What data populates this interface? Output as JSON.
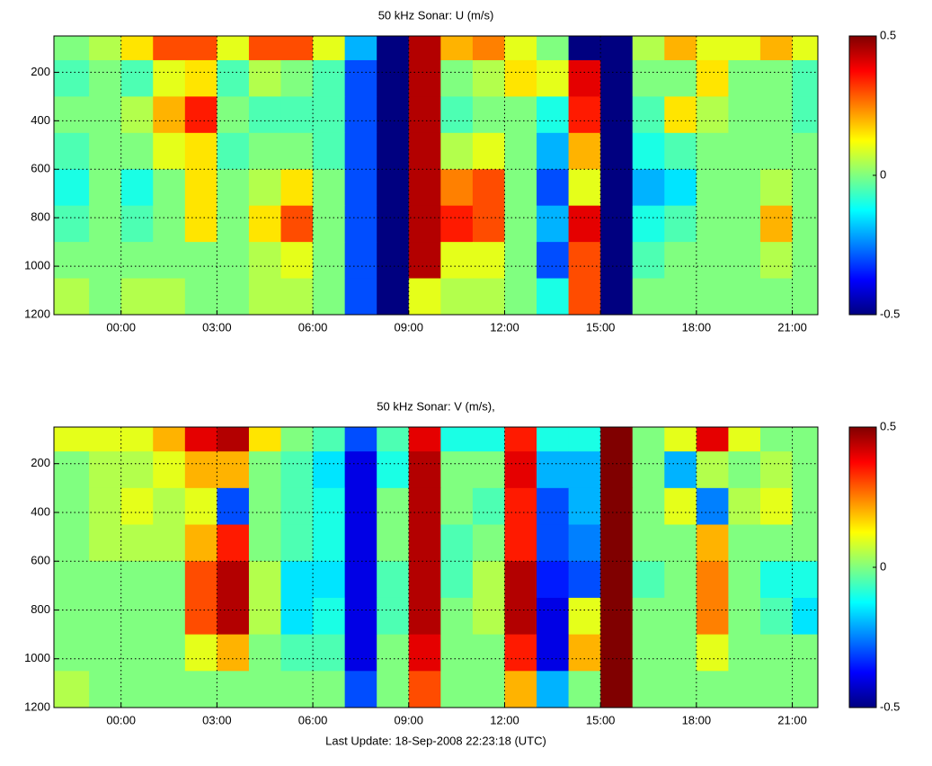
{
  "chart_data": [
    {
      "type": "heatmap",
      "title": "50 kHz Sonar: U (m/s)",
      "x": [
        -2.1,
        -1,
        0,
        1,
        2,
        3,
        4,
        5,
        6,
        7,
        8,
        9,
        10,
        11,
        12,
        13,
        14,
        15,
        16,
        17,
        18,
        19,
        20,
        21,
        21.8
      ],
      "y": [
        50,
        150,
        300,
        450,
        600,
        750,
        900,
        1050,
        1200
      ],
      "z": [
        [
          0,
          0.05,
          0.15,
          0.3,
          0.3,
          0.1,
          0.3,
          0.3,
          0.1,
          -0.2,
          -0.5,
          0.45,
          0.2,
          0.25,
          0.1,
          0,
          -0.5,
          -0.5,
          0.05,
          0.2,
          0.1,
          0.1,
          0.2,
          0.1
        ],
        [
          -0.05,
          0,
          -0.05,
          0.1,
          0.15,
          -0.05,
          0.05,
          0,
          -0.05,
          -0.3,
          -0.5,
          0.45,
          0,
          0.05,
          0.15,
          0.1,
          0.4,
          -0.5,
          0,
          0,
          0.15,
          0,
          0,
          -0.05
        ],
        [
          0,
          0,
          0.05,
          0.2,
          0.35,
          0,
          -0.05,
          -0.05,
          -0.05,
          -0.3,
          -0.5,
          0.45,
          -0.05,
          0,
          0,
          -0.1,
          0.35,
          -0.5,
          -0.05,
          0.15,
          0.05,
          0,
          0,
          -0.05
        ],
        [
          -0.05,
          0,
          0,
          0.1,
          0.15,
          -0.05,
          0,
          0,
          -0.05,
          -0.3,
          -0.5,
          0.45,
          0.05,
          0.1,
          0,
          -0.2,
          0.2,
          -0.5,
          -0.1,
          -0.05,
          0,
          0,
          0,
          0
        ],
        [
          -0.1,
          0,
          -0.1,
          0,
          0.15,
          0,
          0.05,
          0.15,
          0,
          -0.3,
          -0.5,
          0.45,
          0.25,
          0.3,
          0,
          -0.3,
          0.1,
          -0.5,
          -0.2,
          -0.15,
          0,
          0,
          0.05,
          0
        ],
        [
          -0.05,
          0,
          -0.05,
          0,
          0.15,
          0,
          0.15,
          0.3,
          0,
          -0.3,
          -0.5,
          0.45,
          0.35,
          0.3,
          0,
          -0.2,
          0.4,
          -0.5,
          -0.1,
          -0.05,
          0,
          0,
          0.2,
          0
        ],
        [
          0,
          0,
          0,
          0,
          0,
          0,
          0.05,
          0.1,
          0,
          -0.3,
          -0.5,
          0.45,
          0.1,
          0.1,
          0,
          -0.3,
          0.3,
          -0.5,
          -0.05,
          0,
          0,
          0,
          0.05,
          0
        ],
        [
          0.05,
          0,
          0.05,
          0.05,
          0,
          0,
          0.05,
          0.05,
          0,
          -0.3,
          -0.5,
          0.1,
          0.05,
          0.05,
          0,
          -0.1,
          0.3,
          -0.5,
          0,
          0,
          0,
          0,
          0,
          0
        ]
      ],
      "xlim": [
        -2.1,
        21.8
      ],
      "ylim": [
        1200,
        50
      ],
      "xticks": [
        {
          "value": 0,
          "label": "00:00"
        },
        {
          "value": 3,
          "label": "03:00"
        },
        {
          "value": 6,
          "label": "06:00"
        },
        {
          "value": 9,
          "label": "09:00"
        },
        {
          "value": 12,
          "label": "12:00"
        },
        {
          "value": 15,
          "label": "15:00"
        },
        {
          "value": 18,
          "label": "18:00"
        },
        {
          "value": 21,
          "label": "21:00"
        }
      ],
      "yticks": [
        200,
        400,
        600,
        800,
        1000,
        1200
      ],
      "clim": [
        -0.5,
        0.5
      ],
      "cticks": [
        -0.5,
        0,
        0.5
      ],
      "colormap": "jet",
      "grid": true
    },
    {
      "type": "heatmap",
      "title": "50 kHz Sonar: V (m/s),",
      "x": [
        -2.1,
        -1,
        0,
        1,
        2,
        3,
        4,
        5,
        6,
        7,
        8,
        9,
        10,
        11,
        12,
        13,
        14,
        15,
        16,
        17,
        18,
        19,
        20,
        21,
        21.8
      ],
      "y": [
        50,
        150,
        300,
        450,
        600,
        750,
        900,
        1050,
        1200
      ],
      "z": [
        [
          0.1,
          0.1,
          0.1,
          0.2,
          0.4,
          0.45,
          0.15,
          0,
          -0.05,
          -0.3,
          -0.05,
          0.4,
          -0.1,
          -0.1,
          0.35,
          -0.1,
          -0.1,
          0.5,
          0,
          0.1,
          0.4,
          0.1,
          0,
          0
        ],
        [
          0,
          0.05,
          0.05,
          0.1,
          0.2,
          0.2,
          0,
          -0.05,
          -0.15,
          -0.4,
          -0.1,
          0.45,
          0,
          0,
          0.4,
          -0.2,
          -0.2,
          0.5,
          0,
          -0.2,
          0.05,
          0,
          0.05,
          0
        ],
        [
          0,
          0.05,
          0.1,
          0.05,
          0.1,
          -0.3,
          0,
          -0.05,
          -0.1,
          -0.4,
          0,
          0.45,
          0,
          -0.05,
          0.35,
          -0.3,
          -0.2,
          0.5,
          0,
          0.1,
          -0.25,
          0.05,
          0.1,
          0
        ],
        [
          0,
          0.05,
          0.05,
          0.05,
          0.2,
          0.35,
          0,
          -0.05,
          -0.1,
          -0.4,
          0,
          0.45,
          -0.05,
          0,
          0.35,
          -0.3,
          -0.25,
          0.5,
          0,
          0,
          0.2,
          0,
          0,
          0
        ],
        [
          0,
          0,
          0,
          0,
          0.3,
          0.45,
          0.05,
          -0.15,
          -0.15,
          -0.4,
          -0.05,
          0.45,
          -0.05,
          0.05,
          0.45,
          -0.35,
          -0.3,
          0.5,
          -0.05,
          0,
          0.25,
          0,
          -0.1,
          -0.1
        ],
        [
          0,
          0,
          0,
          0,
          0.3,
          0.45,
          0.05,
          -0.15,
          -0.1,
          -0.4,
          -0.05,
          0.45,
          0,
          0.05,
          0.45,
          -0.4,
          0.1,
          0.5,
          0,
          0,
          0.25,
          0,
          -0.05,
          -0.15
        ],
        [
          0,
          0,
          0,
          0,
          0.1,
          0.2,
          0,
          -0.05,
          -0.05,
          -0.4,
          0,
          0.4,
          0,
          0,
          0.35,
          -0.4,
          0.2,
          0.5,
          0,
          0,
          0.1,
          0,
          0,
          0
        ],
        [
          0.05,
          0,
          0,
          0,
          0,
          0,
          0,
          0,
          0,
          -0.3,
          0,
          0.3,
          0,
          0,
          0.2,
          -0.2,
          0,
          0.5,
          0,
          0,
          0,
          0,
          0,
          0
        ]
      ],
      "xlim": [
        -2.1,
        21.8
      ],
      "ylim": [
        1200,
        50
      ],
      "xticks": [
        {
          "value": 0,
          "label": "00:00"
        },
        {
          "value": 3,
          "label": "03:00"
        },
        {
          "value": 6,
          "label": "06:00"
        },
        {
          "value": 9,
          "label": "09:00"
        },
        {
          "value": 12,
          "label": "12:00"
        },
        {
          "value": 15,
          "label": "15:00"
        },
        {
          "value": 18,
          "label": "18:00"
        },
        {
          "value": 21,
          "label": "21:00"
        }
      ],
      "yticks": [
        200,
        400,
        600,
        800,
        1000,
        1200
      ],
      "clim": [
        -0.5,
        0.5
      ],
      "cticks": [
        -0.5,
        0,
        0.5
      ],
      "colormap": "jet",
      "grid": true,
      "xlabel": "Last Update: 18-Sep-2008 22:23:18 (UTC)"
    }
  ]
}
